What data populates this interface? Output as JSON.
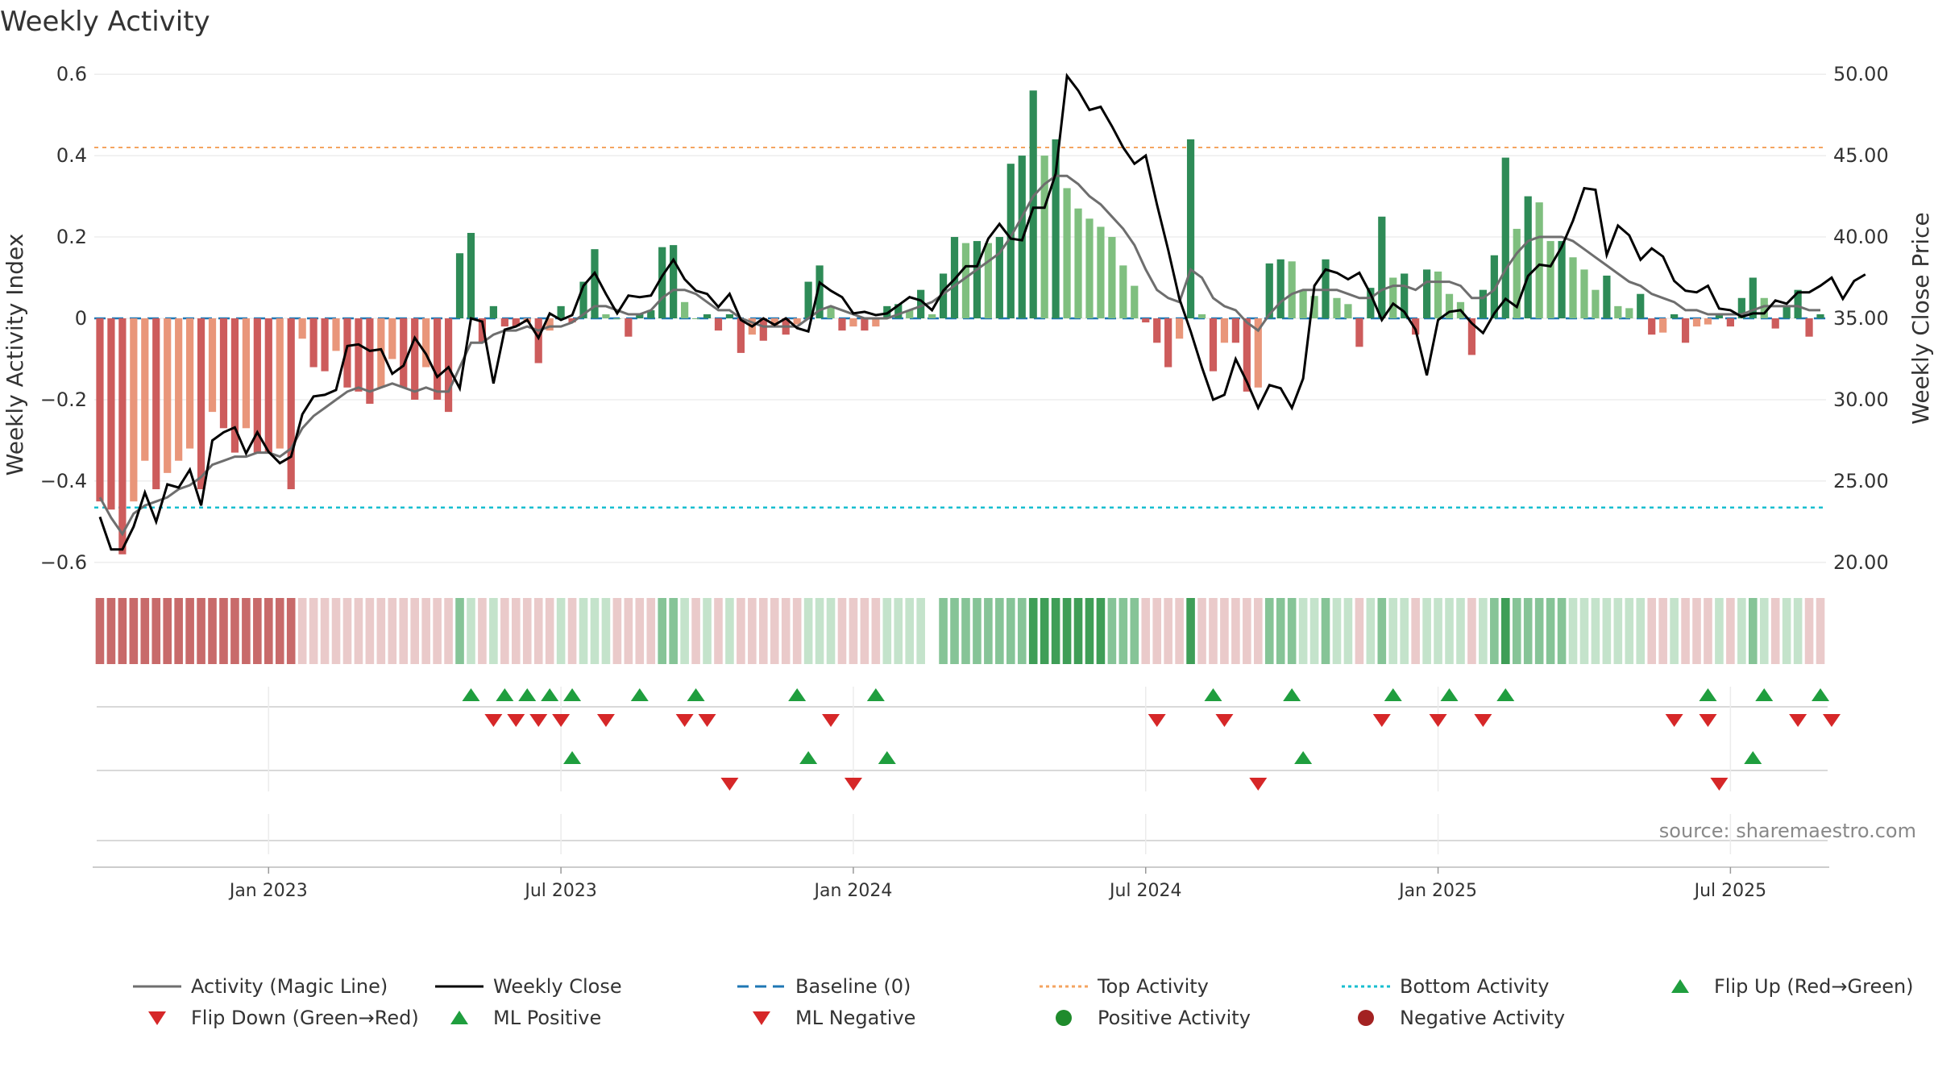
{
  "chart_data": {
    "type": "bar",
    "title": "Weekly Activity",
    "ylabel": "Weekly Activity Index",
    "y2label": "Weekly Close Price",
    "ylim": [
      -0.62,
      0.62
    ],
    "y2lim": [
      19.5,
      50.5
    ],
    "yticks": [
      {
        "v": 0.6,
        "label": "0.6"
      },
      {
        "v": 0.4,
        "label": "0.4"
      },
      {
        "v": 0.2,
        "label": "0.2"
      },
      {
        "v": 0,
        "label": "0"
      },
      {
        "v": -0.2,
        "label": "−0.2"
      },
      {
        "v": -0.4,
        "label": "−0.4"
      },
      {
        "v": -0.6,
        "label": "−0.6"
      }
    ],
    "y2ticks": [
      {
        "v": 50,
        "label": "50.00"
      },
      {
        "v": 45,
        "label": "45.00"
      },
      {
        "v": 40,
        "label": "40.00"
      },
      {
        "v": 35,
        "label": "35.00"
      },
      {
        "v": 30,
        "label": "30.00"
      },
      {
        "v": 25,
        "label": "25.00"
      },
      {
        "v": 20,
        "label": "20.00"
      }
    ],
    "xticks": [
      {
        "i": 15,
        "label": "Jan 2023"
      },
      {
        "i": 41,
        "label": "Jul 2023"
      },
      {
        "i": 67,
        "label": "Jan 2024"
      },
      {
        "i": 93,
        "label": "Jul 2024"
      },
      {
        "i": 119,
        "label": "Jan 2025"
      },
      {
        "i": 145,
        "label": "Jul 2025"
      }
    ],
    "top_activity": 0.42,
    "bottom_activity": -0.465,
    "baseline": 0,
    "activity": [
      -0.45,
      -0.47,
      -0.58,
      -0.45,
      -0.35,
      -0.42,
      -0.38,
      -0.35,
      -0.32,
      -0.42,
      -0.23,
      -0.27,
      -0.33,
      -0.27,
      -0.33,
      -0.33,
      -0.32,
      -0.42,
      -0.05,
      -0.12,
      -0.13,
      -0.08,
      -0.17,
      -0.18,
      -0.21,
      -0.17,
      -0.1,
      -0.17,
      -0.2,
      -0.12,
      -0.2,
      -0.23,
      0.16,
      0.21,
      -0.06,
      0.03,
      -0.02,
      -0.02,
      -0.01,
      -0.11,
      -0.03,
      0.03,
      -0.01,
      0.09,
      0.17,
      0.01,
      0,
      -0.045,
      0.01,
      0.02,
      0.175,
      0.18,
      0.04,
      0,
      0.01,
      -0.03,
      0.01,
      -0.085,
      -0.04,
      -0.055,
      -0.02,
      -0.04,
      -0.015,
      0.09,
      0.13,
      0.03,
      -0.03,
      -0.02,
      -0.03,
      -0.02,
      0.03,
      0.035,
      0.02,
      0.07,
      0.01,
      0.11,
      0.2,
      0.185,
      0.19,
      0.185,
      0.2,
      0.38,
      0.4,
      0.56,
      0.4,
      0.44,
      0.32,
      0.27,
      0.245,
      0.225,
      0.2,
      0.13,
      0.08,
      -0.01,
      -0.06,
      -0.12,
      -0.05,
      0.44,
      0.01,
      -0.13,
      -0.06,
      -0.06,
      -0.18,
      -0.17,
      0.135,
      0.145,
      0.14,
      0.07,
      0.055,
      0.145,
      0.05,
      0.035,
      -0.07,
      0.075,
      0.25,
      0.1,
      0.11,
      -0.04,
      0.12,
      0.115,
      0.06,
      0.04,
      -0.09,
      0.07,
      0.155,
      0.395,
      0.22,
      0.3,
      0.285,
      0.19,
      0.19,
      0.15,
      0.12,
      0.07,
      0.105,
      0.03,
      0.025,
      0.06,
      -0.04,
      -0.035,
      0.01,
      -0.06,
      -0.02,
      -0.015,
      0.01,
      -0.02,
      0.05,
      0.1,
      0.05,
      -0.025,
      0.03,
      0.07,
      -0.045,
      0.01
    ],
    "magic_line": [
      -0.44,
      -0.49,
      -0.53,
      -0.48,
      -0.46,
      -0.45,
      -0.44,
      -0.42,
      -0.41,
      -0.39,
      -0.36,
      -0.35,
      -0.34,
      -0.34,
      -0.33,
      -0.33,
      -0.34,
      -0.32,
      -0.27,
      -0.24,
      -0.22,
      -0.2,
      -0.18,
      -0.17,
      -0.18,
      -0.17,
      -0.16,
      -0.17,
      -0.18,
      -0.17,
      -0.18,
      -0.18,
      -0.12,
      -0.06,
      -0.06,
      -0.04,
      -0.03,
      -0.03,
      -0.02,
      -0.03,
      -0.02,
      -0.02,
      -0.01,
      0.01,
      0.03,
      0.03,
      0.02,
      0.01,
      0.01,
      0.02,
      0.05,
      0.07,
      0.07,
      0.06,
      0.04,
      0.02,
      0.02,
      0.0,
      -0.01,
      -0.02,
      -0.02,
      -0.02,
      -0.02,
      0.0,
      0.02,
      0.03,
      0.02,
      0.01,
      0.0,
      0.0,
      0.0,
      0.01,
      0.02,
      0.03,
      0.04,
      0.06,
      0.08,
      0.1,
      0.12,
      0.14,
      0.16,
      0.2,
      0.25,
      0.3,
      0.33,
      0.35,
      0.35,
      0.33,
      0.3,
      0.28,
      0.25,
      0.22,
      0.18,
      0.12,
      0.07,
      0.05,
      0.04,
      0.12,
      0.1,
      0.05,
      0.03,
      0.02,
      -0.01,
      -0.03,
      0.01,
      0.04,
      0.06,
      0.07,
      0.07,
      0.07,
      0.07,
      0.06,
      0.05,
      0.05,
      0.07,
      0.08,
      0.08,
      0.07,
      0.09,
      0.09,
      0.09,
      0.08,
      0.05,
      0.05,
      0.07,
      0.12,
      0.16,
      0.19,
      0.2,
      0.2,
      0.2,
      0.19,
      0.17,
      0.15,
      0.13,
      0.11,
      0.09,
      0.08,
      0.06,
      0.05,
      0.04,
      0.02,
      0.02,
      0.01,
      0.01,
      0.01,
      0.01,
      0.02,
      0.03,
      0.03,
      0.03,
      0.03,
      0.02,
      0.02
    ],
    "weekly_close": [
      22.8,
      20.8,
      20.8,
      22.2,
      24.3,
      22.5,
      24.8,
      24.6,
      25.7,
      23.5,
      27.5,
      28.0,
      28.3,
      26.7,
      28.0,
      26.8,
      26.1,
      26.5,
      29.1,
      30.2,
      30.3,
      30.6,
      33.3,
      33.4,
      33.0,
      33.1,
      31.6,
      32.1,
      33.8,
      32.8,
      31.4,
      32.0,
      30.7,
      35.0,
      34.8,
      31.0,
      34.3,
      34.5,
      34.9,
      33.8,
      35.3,
      34.9,
      35.2,
      37.0,
      37.8,
      36.5,
      35.3,
      36.4,
      36.3,
      36.4,
      37.6,
      38.6,
      37.4,
      36.7,
      36.5,
      35.7,
      36.5,
      34.9,
      34.5,
      35.0,
      34.6,
      35.0,
      34.4,
      34.2,
      37.2,
      36.7,
      36.3,
      35.3,
      35.4,
      35.2,
      35.3,
      35.8,
      36.3,
      36.1,
      35.5,
      36.7,
      37.4,
      38.2,
      38.2,
      39.9,
      40.8,
      39.9,
      39.8,
      41.8,
      41.8,
      43.9,
      49.9,
      49.0,
      47.8,
      48.0,
      46.8,
      45.5,
      44.5,
      45.0,
      42.0,
      39.2,
      36.2,
      34.2,
      32.0,
      30.0,
      30.3,
      32.5,
      31.1,
      29.5,
      30.9,
      30.7,
      29.5,
      31.3,
      37.0,
      38.0,
      37.8,
      37.4,
      37.8,
      36.5,
      34.9,
      35.9,
      35.4,
      34.3,
      31.5,
      34.9,
      35.4,
      35.5,
      34.7,
      34.1,
      35.3,
      36.2,
      35.7,
      37.6,
      38.3,
      38.2,
      39.4,
      41.0,
      43.0,
      42.9,
      38.9,
      40.7,
      40.1,
      38.6,
      39.3,
      38.8,
      37.3,
      36.7,
      36.6,
      37.0,
      35.6,
      35.5,
      35.1,
      35.3,
      35.3,
      36.1,
      35.9,
      36.6,
      36.6,
      37.0,
      37.5,
      36.2,
      37.3,
      37.7
    ],
    "activity_strip": [
      -3,
      -3,
      -3,
      -3,
      -3,
      -3,
      -3,
      -3,
      -3,
      -3,
      -3,
      -3,
      -3,
      -3,
      -3,
      -3,
      -3,
      -3,
      -1,
      -1,
      -1,
      -1,
      -1,
      -1,
      -1,
      -1,
      -1,
      -1,
      -1,
      -1,
      -1,
      -1,
      2,
      1,
      -1,
      1,
      -1,
      -1,
      -1,
      -1,
      -1,
      1,
      -1,
      1,
      1,
      1,
      -1,
      -1,
      -1,
      -1,
      2,
      2,
      1,
      -1,
      1,
      -1,
      1,
      -1,
      -1,
      -1,
      -1,
      -1,
      -1,
      1,
      1,
      1,
      -1,
      -1,
      -1,
      -1,
      1,
      1,
      1,
      1,
      null,
      2,
      2,
      2,
      2,
      2,
      2,
      2,
      2,
      3,
      3,
      3,
      3,
      3,
      3,
      3,
      2,
      2,
      2,
      -1,
      -1,
      -1,
      -1,
      3,
      -1,
      -1,
      -1,
      -1,
      -1,
      -1,
      2,
      2,
      2,
      1,
      1,
      2,
      1,
      1,
      -1,
      1,
      2,
      1,
      1,
      -1,
      1,
      1,
      1,
      1,
      -1,
      1,
      2,
      3,
      2,
      2,
      2,
      2,
      2,
      1,
      1,
      1,
      1,
      1,
      1,
      1,
      -1,
      -1,
      1,
      -1,
      -1,
      -1,
      1,
      -1,
      1,
      2,
      1,
      -1,
      1,
      1,
      -1,
      -1
    ],
    "flip_up": [
      33,
      36,
      38,
      40,
      42,
      48,
      53,
      62,
      69,
      99,
      106,
      115,
      120,
      125,
      143,
      148,
      153
    ],
    "flip_down": [
      35,
      37,
      39,
      41,
      45,
      52,
      54,
      65,
      94,
      100,
      114,
      119,
      123,
      140,
      143,
      151,
      154
    ],
    "ml_positive": [
      42,
      63,
      70,
      107,
      147
    ],
    "ml_negative": [
      56,
      67,
      103,
      144
    ],
    "legend": [
      {
        "label": "Activity (Magic Line)",
        "kind": "line",
        "color": "#6e6e6e",
        "dash": ""
      },
      {
        "label": "Weekly Close",
        "kind": "line",
        "color": "#000000",
        "dash": ""
      },
      {
        "label": "Baseline (0)",
        "kind": "line",
        "color": "#1f77b4",
        "dash": "14,8"
      },
      {
        "label": "Top Activity",
        "kind": "line",
        "color": "#f4a460",
        "dash": "4,4"
      },
      {
        "label": "Bottom Activity",
        "kind": "line",
        "color": "#17becf",
        "dash": "4,4"
      },
      {
        "label": "Flip Up (Red→Green)",
        "kind": "tri-up",
        "color": "#1f9e3e"
      },
      {
        "label": "Flip Down (Green→Red)",
        "kind": "tri-down",
        "color": "#d62728"
      },
      {
        "label": "ML Positive",
        "kind": "tri-up",
        "color": "#1f9e3e"
      },
      {
        "label": "ML Negative",
        "kind": "tri-down",
        "color": "#d62728"
      },
      {
        "label": "Positive Activity",
        "kind": "dot",
        "color": "#1f8b2c"
      },
      {
        "label": "Negative Activity",
        "kind": "dot",
        "color": "#a32222"
      }
    ],
    "source": "source: sharemaestro.com"
  },
  "colors": {
    "pos_strong": "#2e8b57",
    "pos_weak": "#7fbf7f",
    "neg_strong": "#cd5c5c",
    "neg_weak": "#e9967a",
    "top_line": "#f4a460",
    "bottom_line": "#17becf",
    "baseline": "#1f77b4",
    "magic_line": "#6e6e6e",
    "close_line": "#000000",
    "flip_up": "#1f9e3e",
    "flip_down": "#d62728"
  }
}
